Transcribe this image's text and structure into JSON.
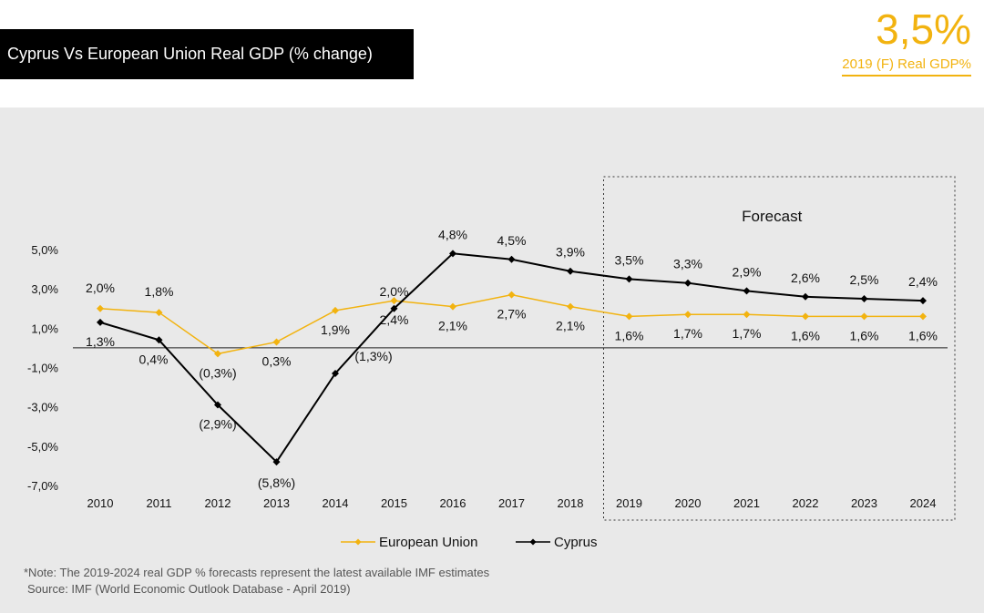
{
  "header": {
    "title": "Cyprus Vs European Union Real GDP (% change)",
    "kpi_value": "3,5%",
    "kpi_label": "2019 (F) Real GDP%"
  },
  "colors": {
    "eu": "#f2b310",
    "cyprus": "#000000",
    "panel": "#e9e9e9",
    "accent": "#f2b310"
  },
  "chart_data": {
    "type": "line",
    "categories": [
      "2010",
      "2011",
      "2012",
      "2013",
      "2014",
      "2015",
      "2016",
      "2017",
      "2018",
      "2019",
      "2020",
      "2021",
      "2022",
      "2023",
      "2024"
    ],
    "ylim": [
      -7,
      5
    ],
    "yticks": [
      5,
      3,
      1,
      -1,
      -3,
      -5,
      -7
    ],
    "ytick_labels": [
      "5,0%",
      "3,0%",
      "1,0%",
      "-1,0%",
      "-3,0%",
      "-5,0%",
      "-7,0%"
    ],
    "series": [
      {
        "name": "European Union",
        "values": [
          2.0,
          1.8,
          -0.3,
          0.3,
          1.9,
          2.4,
          2.1,
          2.7,
          2.1,
          1.6,
          1.7,
          1.7,
          1.6,
          1.6,
          1.6
        ],
        "labels": [
          "2,0%",
          "1,8%",
          "(0,3%)",
          "0,3%",
          "1,9%",
          "2,4%",
          "2,1%",
          "2,7%",
          "2,1%",
          "1,6%",
          "1,7%",
          "1,7%",
          "1,6%",
          "1,6%",
          "1,6%"
        ]
      },
      {
        "name": "Cyprus",
        "values": [
          1.3,
          0.4,
          -2.9,
          -5.8,
          -1.3,
          2.0,
          4.8,
          4.5,
          3.9,
          3.5,
          3.3,
          2.9,
          2.6,
          2.5,
          2.4
        ],
        "labels": [
          "1,3%",
          "0,4%",
          "(2,9%)",
          "(5,8%)",
          "(1,3%)",
          "2,0%",
          "4,8%",
          "4,5%",
          "3,9%",
          "3,5%",
          "3,3%",
          "2,9%",
          "2,6%",
          "2,5%",
          "2,4%"
        ]
      }
    ],
    "forecast_label": "Forecast",
    "forecast_start": "2019",
    "grid": false,
    "legend_position": "bottom"
  },
  "footnotes": {
    "note": "*Note: The 2019-2024 real GDP % forecasts represent the latest available IMF estimates",
    "source": "Source: IMF (World Economic Outlook Database - April 2019)"
  }
}
